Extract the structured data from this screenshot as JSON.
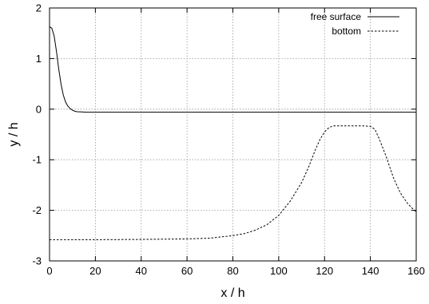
{
  "chart_data": {
    "type": "line",
    "title": "",
    "xlabel": "x / h",
    "ylabel": "y / h",
    "xlim": [
      0,
      160
    ],
    "ylim": [
      -3,
      2
    ],
    "x_ticks": [
      0,
      20,
      40,
      60,
      80,
      100,
      120,
      140,
      160
    ],
    "y_ticks": [
      -3,
      -2,
      -1,
      0,
      1,
      2
    ],
    "grid": true,
    "legend_position": "top-right",
    "series": [
      {
        "name": "free surface",
        "style": "solid",
        "color": "#000000",
        "points": [
          [
            0,
            1.63
          ],
          [
            1,
            1.6
          ],
          [
            2,
            1.45
          ],
          [
            3,
            1.15
          ],
          [
            4,
            0.8
          ],
          [
            5,
            0.5
          ],
          [
            6,
            0.28
          ],
          [
            7,
            0.14
          ],
          [
            8,
            0.06
          ],
          [
            9,
            0.01
          ],
          [
            10,
            -0.02
          ],
          [
            11,
            -0.04
          ],
          [
            12,
            -0.05
          ],
          [
            14,
            -0.055
          ],
          [
            16,
            -0.06
          ],
          [
            20,
            -0.06
          ],
          [
            40,
            -0.06
          ],
          [
            60,
            -0.06
          ],
          [
            80,
            -0.06
          ],
          [
            100,
            -0.06
          ],
          [
            120,
            -0.06
          ],
          [
            140,
            -0.06
          ],
          [
            160,
            -0.06
          ]
        ]
      },
      {
        "name": "bottom",
        "style": "dashed",
        "color": "#000000",
        "points": [
          [
            0,
            -2.58
          ],
          [
            20,
            -2.58
          ],
          [
            40,
            -2.575
          ],
          [
            60,
            -2.565
          ],
          [
            70,
            -2.55
          ],
          [
            80,
            -2.5
          ],
          [
            85,
            -2.46
          ],
          [
            90,
            -2.39
          ],
          [
            95,
            -2.28
          ],
          [
            100,
            -2.1
          ],
          [
            105,
            -1.82
          ],
          [
            110,
            -1.45
          ],
          [
            113,
            -1.15
          ],
          [
            116,
            -0.8
          ],
          [
            118,
            -0.6
          ],
          [
            120,
            -0.45
          ],
          [
            122,
            -0.36
          ],
          [
            124,
            -0.33
          ],
          [
            130,
            -0.33
          ],
          [
            136,
            -0.33
          ],
          [
            140,
            -0.34
          ],
          [
            142,
            -0.4
          ],
          [
            144,
            -0.6
          ],
          [
            147,
            -0.95
          ],
          [
            150,
            -1.35
          ],
          [
            153,
            -1.65
          ],
          [
            156,
            -1.85
          ],
          [
            158,
            -1.95
          ],
          [
            160,
            -2.03
          ]
        ]
      }
    ]
  }
}
